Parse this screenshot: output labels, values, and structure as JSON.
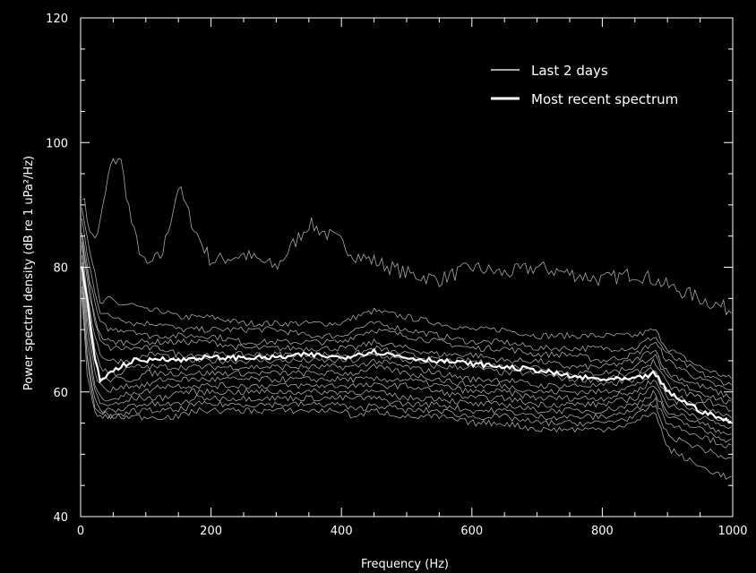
{
  "chart_data": {
    "type": "line",
    "xlabel": "Frequency (Hz)",
    "ylabel": "Power spectral density (dB re 1 uPa²/Hz)",
    "xlim": [
      0,
      1000
    ],
    "ylim": [
      40,
      120
    ],
    "xticks": [
      0,
      200,
      400,
      600,
      800,
      1000
    ],
    "yticks": [
      40,
      60,
      80,
      100,
      120
    ],
    "grid": false,
    "legend_position": "top-right",
    "colors": {
      "background": "#000000",
      "axes": "#ffffff",
      "history": "#a8a8a8",
      "recent": "#ffffff"
    },
    "series": [
      {
        "name": "Last 2 days",
        "role": "history",
        "x": [
          2,
          10,
          20,
          30,
          45,
          60,
          80,
          100,
          125,
          150,
          175,
          200,
          250,
          300,
          350,
          400,
          420,
          450,
          500,
          550,
          600,
          650,
          700,
          750,
          800,
          850,
          880,
          900,
          950,
          1000
        ],
        "curves": [
          [
            92,
            88,
            84,
            87,
            96,
            98,
            86,
            80,
            82,
            93,
            86,
            81,
            82,
            80,
            87,
            84,
            82,
            81,
            79,
            78,
            80,
            79,
            80,
            79,
            78,
            79,
            78,
            77,
            75,
            73
          ],
          [
            90,
            85,
            80,
            74,
            75,
            74,
            74,
            73,
            73,
            72,
            72,
            72,
            71,
            71,
            71,
            71,
            72,
            73,
            72,
            71,
            70,
            70,
            69,
            69,
            69,
            69,
            70,
            67,
            64,
            62
          ],
          [
            88,
            82,
            77,
            73,
            72,
            72,
            71,
            71,
            71,
            70,
            70,
            70,
            70,
            70,
            69,
            69,
            70,
            71,
            70,
            69,
            68,
            68,
            67,
            67,
            67,
            67,
            69,
            66,
            63,
            61
          ],
          [
            86,
            80,
            75,
            71,
            70,
            70,
            70,
            69,
            69,
            69,
            69,
            69,
            68,
            68,
            68,
            68,
            69,
            70,
            69,
            68,
            67,
            67,
            66,
            66,
            65,
            66,
            68,
            65,
            62,
            60
          ],
          [
            85,
            79,
            73,
            69,
            68,
            68,
            68,
            68,
            68,
            68,
            68,
            68,
            67,
            67,
            67,
            67,
            67,
            68,
            67,
            66,
            66,
            65,
            65,
            64,
            64,
            65,
            67,
            63,
            61,
            59
          ],
          [
            84,
            78,
            72,
            68,
            67,
            67,
            67,
            67,
            67,
            66,
            66,
            66,
            66,
            66,
            66,
            66,
            66,
            67,
            66,
            65,
            65,
            64,
            64,
            63,
            63,
            64,
            66,
            62,
            60,
            58
          ],
          [
            83,
            76,
            70,
            66,
            65,
            65,
            65,
            66,
            66,
            65,
            65,
            65,
            65,
            65,
            65,
            65,
            65,
            66,
            65,
            64,
            64,
            63,
            63,
            62,
            62,
            63,
            65,
            61,
            59,
            57
          ],
          [
            82,
            75,
            68,
            64,
            63,
            63,
            64,
            64,
            64,
            64,
            64,
            64,
            64,
            64,
            64,
            64,
            64,
            65,
            64,
            63,
            62,
            62,
            61,
            61,
            61,
            62,
            64,
            60,
            58,
            56
          ],
          [
            81,
            73,
            66,
            62,
            62,
            62,
            62,
            63,
            63,
            63,
            63,
            63,
            63,
            63,
            63,
            63,
            63,
            64,
            63,
            62,
            61,
            61,
            60,
            60,
            60,
            61,
            63,
            59,
            57,
            55
          ],
          [
            80,
            72,
            64,
            61,
            60,
            61,
            61,
            61,
            62,
            62,
            62,
            62,
            62,
            62,
            62,
            62,
            62,
            62,
            62,
            61,
            60,
            60,
            59,
            59,
            59,
            60,
            62,
            58,
            56,
            54
          ],
          [
            79,
            70,
            62,
            59,
            59,
            59,
            60,
            60,
            61,
            61,
            61,
            61,
            61,
            61,
            61,
            61,
            61,
            61,
            61,
            60,
            59,
            59,
            58,
            58,
            58,
            59,
            61,
            57,
            55,
            53
          ],
          [
            78,
            68,
            61,
            58,
            58,
            58,
            59,
            59,
            59,
            60,
            60,
            60,
            60,
            60,
            60,
            60,
            60,
            60,
            59,
            59,
            58,
            58,
            57,
            57,
            57,
            58,
            60,
            56,
            54,
            52
          ],
          [
            77,
            66,
            59,
            57,
            57,
            57,
            58,
            58,
            58,
            58,
            59,
            59,
            59,
            59,
            59,
            59,
            59,
            59,
            58,
            58,
            57,
            57,
            56,
            56,
            56,
            57,
            59,
            55,
            53,
            51
          ],
          [
            76,
            65,
            58,
            57,
            56,
            56,
            57,
            57,
            57,
            57,
            58,
            58,
            58,
            58,
            58,
            58,
            57,
            58,
            57,
            57,
            56,
            56,
            55,
            55,
            55,
            56,
            58,
            53,
            51,
            49
          ],
          [
            75,
            63,
            57,
            56,
            56,
            56,
            56,
            56,
            56,
            56,
            57,
            57,
            57,
            57,
            57,
            57,
            56,
            57,
            56,
            56,
            55,
            55,
            54,
            54,
            54,
            55,
            57,
            51,
            48,
            46
          ]
        ]
      },
      {
        "name": "Most recent spectrum",
        "role": "recent",
        "x": [
          2,
          10,
          20,
          30,
          45,
          60,
          80,
          100,
          125,
          150,
          175,
          200,
          250,
          300,
          350,
          400,
          420,
          450,
          500,
          550,
          600,
          650,
          700,
          750,
          800,
          850,
          880,
          900,
          950,
          1000
        ],
        "values": [
          80,
          75,
          66,
          62,
          63,
          64,
          65,
          65,
          65.5,
          65,
          65.5,
          65.5,
          65.5,
          65.5,
          66,
          65.5,
          66,
          66.5,
          65.5,
          65,
          64.5,
          64,
          63.5,
          62.5,
          62,
          62,
          63,
          60,
          57,
          55
        ]
      }
    ]
  }
}
